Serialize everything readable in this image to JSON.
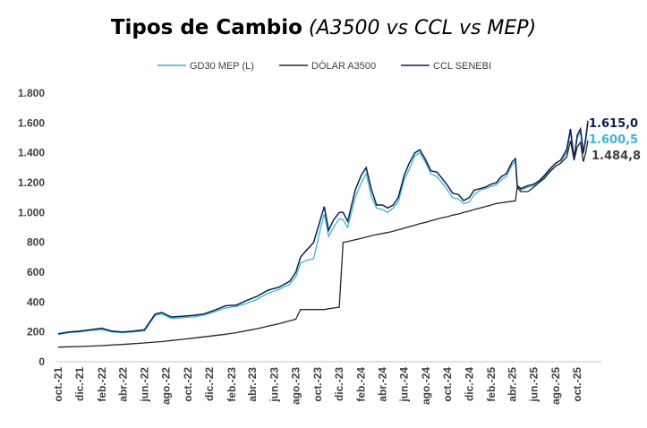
{
  "chart_data": {
    "type": "line",
    "title": "Tipos de Cambio",
    "subtitle": "(A3500 vs CCL vs MEP)",
    "ylim": [
      0,
      1800
    ],
    "yticks": [
      0,
      200,
      400,
      600,
      800,
      1000,
      1200,
      1400,
      1600,
      1800
    ],
    "ytick_labels": [
      "0",
      "200",
      "400",
      "600",
      "800",
      "1.000",
      "1.200",
      "1.400",
      "1.600",
      "1.800"
    ],
    "xtick_labels": [
      "oct.-21",
      "dic.-21",
      "feb.-22",
      "abr.-22",
      "jun.-22",
      "ago.-22",
      "oct.-22",
      "dic.-22",
      "feb.-23",
      "abr.-23",
      "jun.-23",
      "ago.-23",
      "oct.-23",
      "dic.-23",
      "feb.-24",
      "abr.-24",
      "jun.-24",
      "ago.-24",
      "oct.-24",
      "dic.-24",
      "feb.-25",
      "abr.-25",
      "jun.-25",
      "ago.-25",
      "oct.-25"
    ],
    "legend_position": "top",
    "grid": false,
    "x": [
      "2021-10-01",
      "2021-11-01",
      "2021-12-01",
      "2022-01-01",
      "2022-02-01",
      "2022-03-01",
      "2022-04-01",
      "2022-05-01",
      "2022-06-01",
      "2022-07-01",
      "2022-07-20",
      "2022-08-15",
      "2022-09-15",
      "2022-10-15",
      "2022-11-15",
      "2022-12-15",
      "2023-01-15",
      "2023-02-15",
      "2023-03-15",
      "2023-04-15",
      "2023-05-15",
      "2023-06-15",
      "2023-07-15",
      "2023-08-01",
      "2023-08-14",
      "2023-09-01",
      "2023-09-20",
      "2023-10-10",
      "2023-10-20",
      "2023-11-01",
      "2023-11-15",
      "2023-12-01",
      "2023-12-12",
      "2023-12-25",
      "2024-01-15",
      "2024-02-01",
      "2024-02-15",
      "2024-03-01",
      "2024-03-15",
      "2024-04-01",
      "2024-04-15",
      "2024-05-01",
      "2024-05-15",
      "2024-06-01",
      "2024-06-15",
      "2024-07-01",
      "2024-07-15",
      "2024-08-01",
      "2024-08-15",
      "2024-09-01",
      "2024-09-15",
      "2024-10-01",
      "2024-10-15",
      "2024-11-01",
      "2024-11-15",
      "2024-12-01",
      "2024-12-15",
      "2025-01-01",
      "2025-01-15",
      "2025-02-01",
      "2025-02-15",
      "2025-03-01",
      "2025-03-15",
      "2025-04-01",
      "2025-04-10",
      "2025-04-15",
      "2025-04-25",
      "2025-05-15",
      "2025-06-01",
      "2025-06-15",
      "2025-07-01",
      "2025-07-15",
      "2025-08-01",
      "2025-08-15",
      "2025-09-01",
      "2025-09-12",
      "2025-09-22",
      "2025-10-01",
      "2025-10-10",
      "2025-10-18",
      "2025-10-25",
      "2025-10-31"
    ],
    "series": [
      {
        "name": "GD30 MEP (L)",
        "color": "#3bb6d3",
        "end_label": "1.600,5",
        "values": [
          183,
          195,
          200,
          210,
          215,
          200,
          195,
          200,
          205,
          310,
          320,
          290,
          295,
          300,
          312,
          335,
          360,
          370,
          390,
          420,
          460,
          485,
          520,
          570,
          660,
          680,
          690,
          900,
          990,
          840,
          900,
          960,
          950,
          900,
          1100,
          1200,
          1260,
          1100,
          1030,
          1020,
          1000,
          1030,
          1070,
          1220,
          1290,
          1380,
          1400,
          1330,
          1260,
          1240,
          1200,
          1150,
          1100,
          1090,
          1060,
          1070,
          1120,
          1150,
          1160,
          1175,
          1185,
          1220,
          1240,
          1320,
          1340,
          1170,
          1150,
          1170,
          1180,
          1200,
          1240,
          1280,
          1310,
          1330,
          1400,
          1540,
          1350,
          1500,
          1540,
          1390,
          1480,
          1600.5
        ]
      },
      {
        "name": "DÓLAR A3500",
        "color": "#262626",
        "end_label": "1.484,8",
        "values": [
          98,
          100,
          102,
          105,
          108,
          112,
          116,
          121,
          126,
          132,
          135,
          142,
          150,
          158,
          167,
          175,
          184,
          195,
          208,
          222,
          238,
          255,
          275,
          285,
          350,
          350,
          350,
          350,
          350,
          355,
          360,
          365,
          800,
          805,
          818,
          826,
          836,
          845,
          852,
          860,
          866,
          875,
          884,
          895,
          905,
          915,
          925,
          935,
          945,
          955,
          965,
          972,
          982,
          990,
          1000,
          1010,
          1020,
          1030,
          1040,
          1050,
          1060,
          1065,
          1070,
          1075,
          1078,
          1170,
          1140,
          1140,
          1170,
          1200,
          1230,
          1270,
          1310,
          1330,
          1370,
          1480,
          1350,
          1440,
          1470,
          1340,
          1400,
          1484.8
        ]
      },
      {
        "name": "CCL SENEBI",
        "color": "#0e1f50",
        "end_label": "1.615,0",
        "values": [
          188,
          200,
          205,
          215,
          225,
          205,
          200,
          205,
          215,
          320,
          330,
          300,
          305,
          310,
          320,
          345,
          375,
          380,
          410,
          440,
          480,
          500,
          540,
          600,
          700,
          750,
          800,
          960,
          1040,
          880,
          950,
          1000,
          1000,
          940,
          1150,
          1250,
          1300,
          1150,
          1050,
          1050,
          1030,
          1050,
          1100,
          1250,
          1330,
          1400,
          1420,
          1350,
          1280,
          1270,
          1230,
          1180,
          1130,
          1120,
          1080,
          1100,
          1150,
          1160,
          1170,
          1190,
          1200,
          1240,
          1260,
          1340,
          1360,
          1180,
          1160,
          1180,
          1190,
          1210,
          1250,
          1290,
          1330,
          1350,
          1420,
          1560,
          1360,
          1520,
          1560,
          1400,
          1500,
          1615
        ]
      }
    ]
  }
}
